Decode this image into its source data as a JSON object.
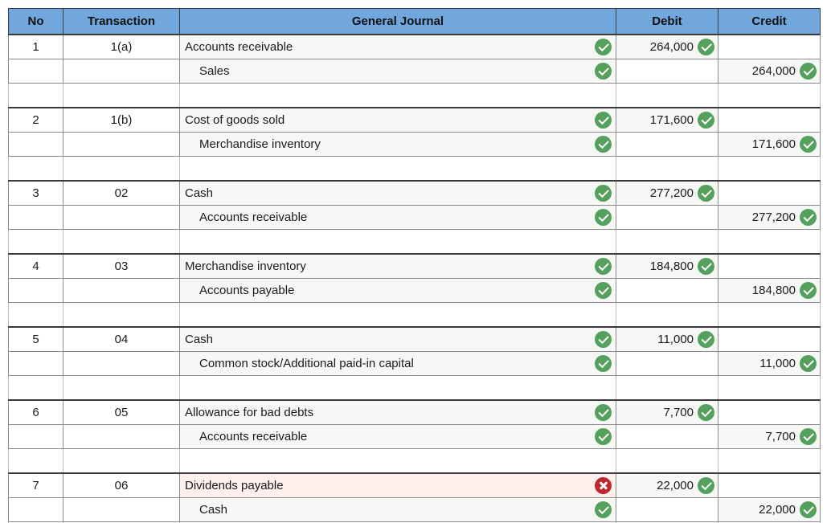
{
  "header": {
    "columns": [
      "No",
      "Transaction",
      "General Journal",
      "Debit",
      "Credit"
    ]
  },
  "colors": {
    "header_blue": "#71a7dc",
    "correct_green": "#55a05c",
    "incorrect_red": "#c0262c",
    "incorrect_cell_pink": "#fdf0ed",
    "filled_cell_tint": "#f5f8f5"
  },
  "entries": [
    {
      "no": "1",
      "transaction": "1(a)",
      "lines": [
        {
          "account": "Accounts receivable",
          "status": "correct",
          "debit": "264,000",
          "debit_status": "correct",
          "credit": "",
          "credit_status": ""
        },
        {
          "account": "Sales",
          "status": "correct",
          "debit": "",
          "debit_status": "",
          "credit": "264,000",
          "credit_status": "correct"
        }
      ]
    },
    {
      "no": "2",
      "transaction": "1(b)",
      "lines": [
        {
          "account": "Cost of goods sold",
          "status": "correct",
          "debit": "171,600",
          "debit_status": "correct",
          "credit": "",
          "credit_status": ""
        },
        {
          "account": "Merchandise inventory",
          "status": "correct",
          "debit": "",
          "debit_status": "",
          "credit": "171,600",
          "credit_status": "correct"
        }
      ]
    },
    {
      "no": "3",
      "transaction": "02",
      "lines": [
        {
          "account": "Cash",
          "status": "correct",
          "debit": "277,200",
          "debit_status": "correct",
          "credit": "",
          "credit_status": ""
        },
        {
          "account": "Accounts receivable",
          "status": "correct",
          "debit": "",
          "debit_status": "",
          "credit": "277,200",
          "credit_status": "correct"
        }
      ]
    },
    {
      "no": "4",
      "transaction": "03",
      "lines": [
        {
          "account": "Merchandise inventory",
          "status": "correct",
          "debit": "184,800",
          "debit_status": "correct",
          "credit": "",
          "credit_status": ""
        },
        {
          "account": "Accounts payable",
          "status": "correct",
          "debit": "",
          "debit_status": "",
          "credit": "184,800",
          "credit_status": "correct"
        }
      ]
    },
    {
      "no": "5",
      "transaction": "04",
      "lines": [
        {
          "account": "Cash",
          "status": "correct",
          "debit": "11,000",
          "debit_status": "correct",
          "credit": "",
          "credit_status": ""
        },
        {
          "account": "Common stock/Additional paid-in capital",
          "status": "correct",
          "debit": "",
          "debit_status": "",
          "credit": "11,000",
          "credit_status": "correct"
        }
      ]
    },
    {
      "no": "6",
      "transaction": "05",
      "lines": [
        {
          "account": "Allowance for bad debts",
          "status": "correct",
          "debit": "7,700",
          "debit_status": "correct",
          "credit": "",
          "credit_status": ""
        },
        {
          "account": "Accounts receivable",
          "status": "correct",
          "debit": "",
          "debit_status": "",
          "credit": "7,700",
          "credit_status": "correct"
        }
      ]
    },
    {
      "no": "7",
      "transaction": "06",
      "lines": [
        {
          "account": "Dividends payable",
          "status": "incorrect",
          "debit": "22,000",
          "debit_status": "correct",
          "credit": "",
          "credit_status": ""
        },
        {
          "account": "Cash",
          "status": "correct",
          "debit": "",
          "debit_status": "",
          "credit": "22,000",
          "credit_status": "correct"
        }
      ]
    }
  ]
}
